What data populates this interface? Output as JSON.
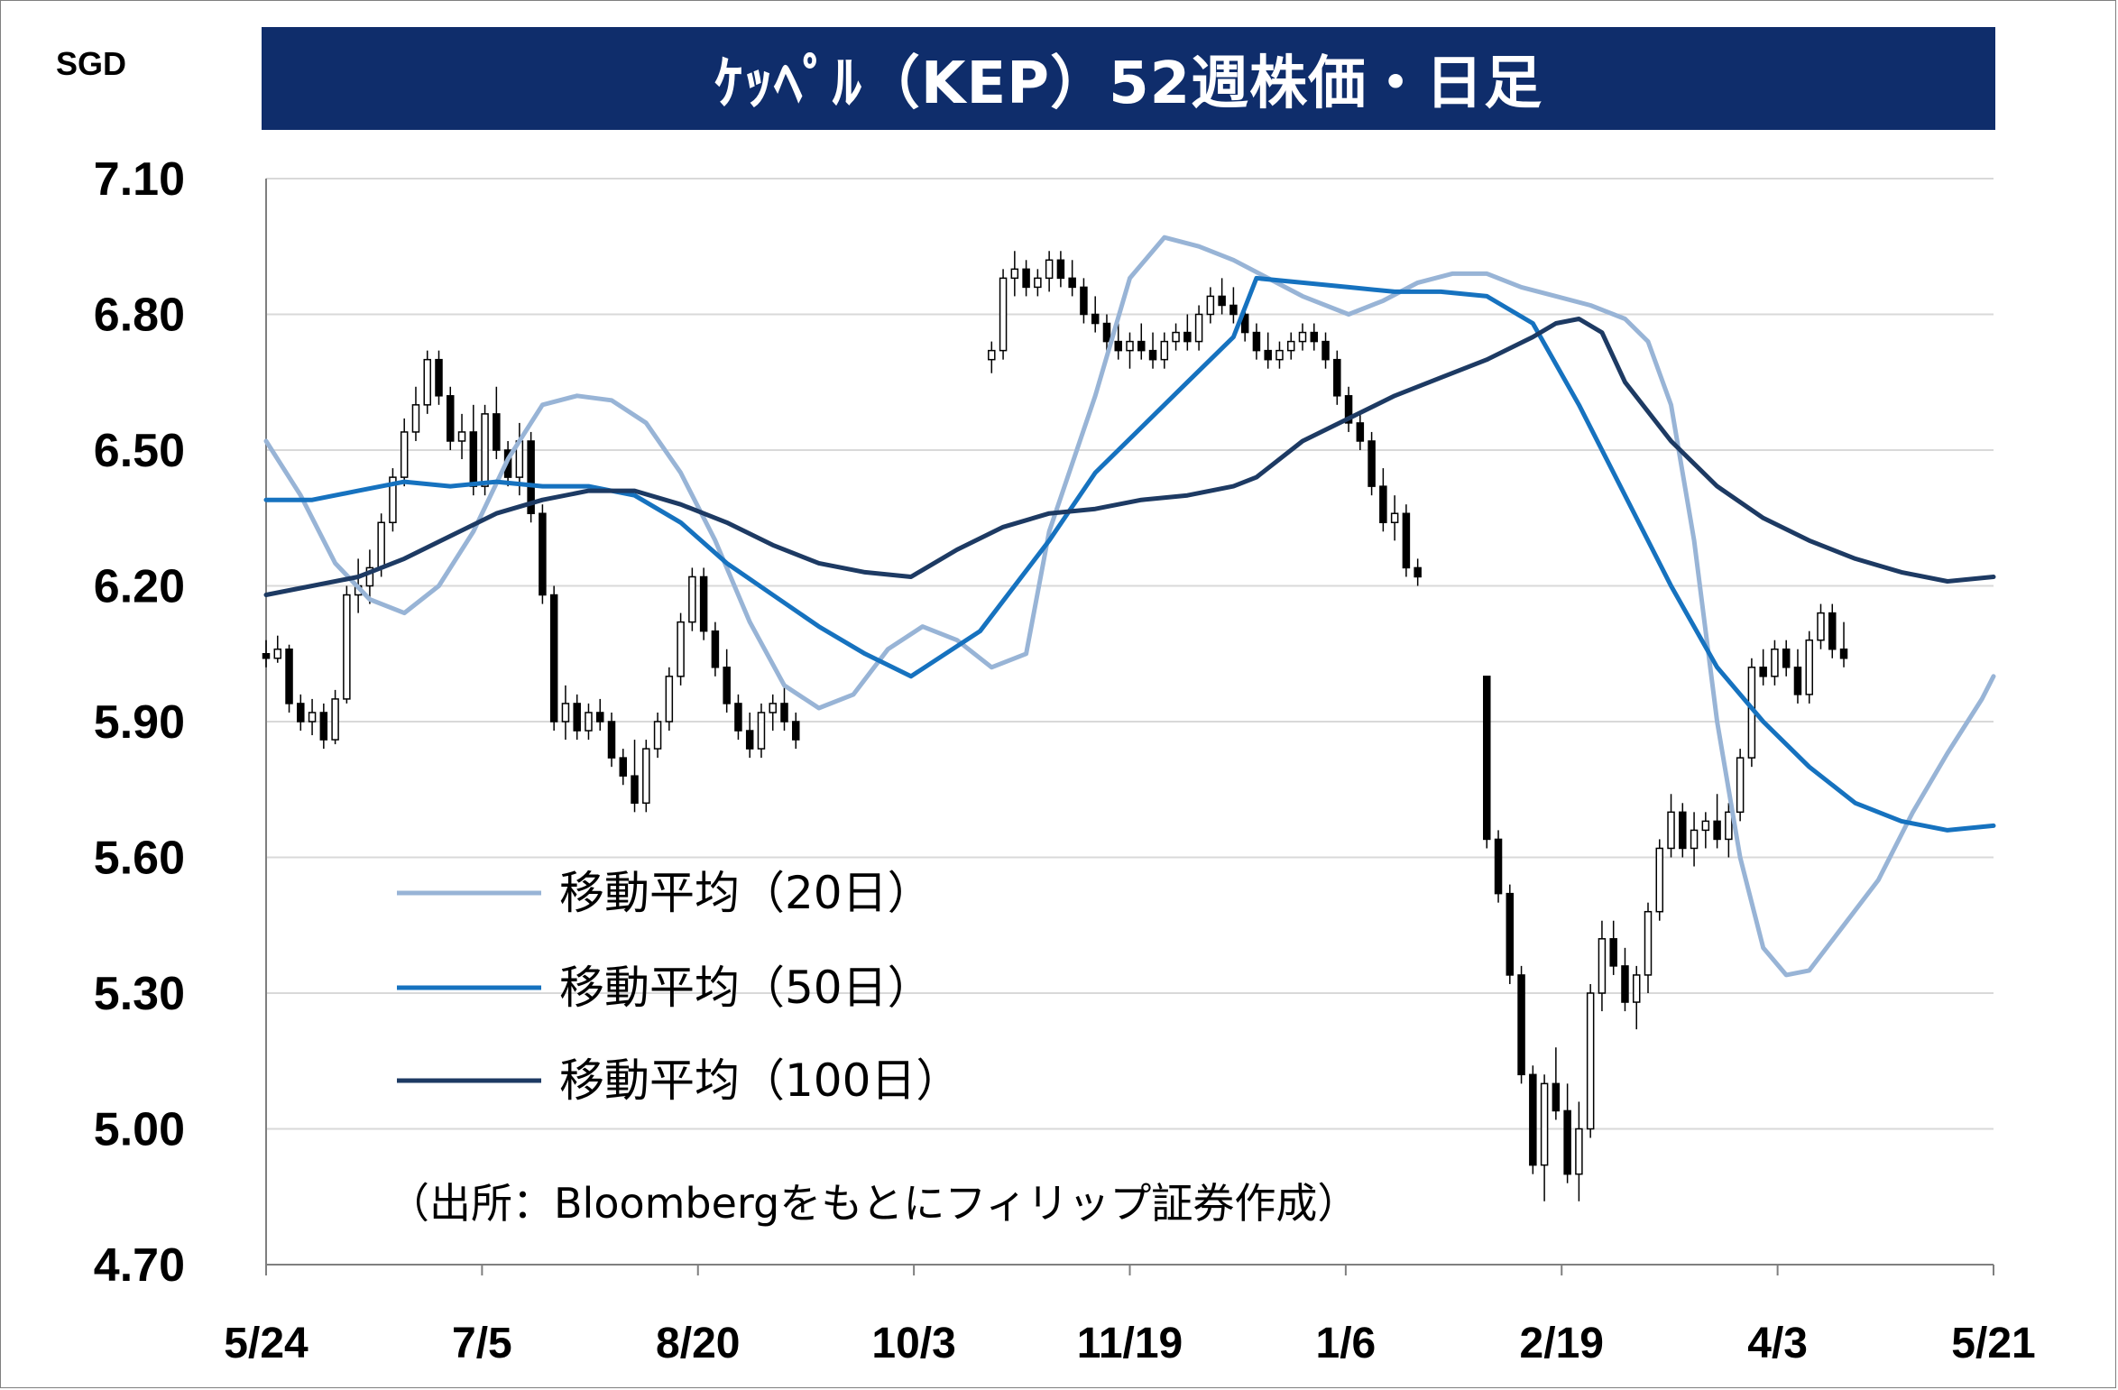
{
  "title": "ｹｯﾍﾟﾙ（KEP）52週株価・日足",
  "unit": "SGD",
  "source": "（出所：Bloombergをもとにフィリップ証券作成）",
  "colors": {
    "title_bg": "#0f2d6b",
    "ma20": "#98b4d6",
    "ma50": "#1672bf",
    "ma100": "#1d3a63",
    "candle_down": "#000000",
    "candle_up": "#ffffff",
    "grid": "#d9d9d9"
  },
  "chart_data": {
    "type": "candlestick",
    "ylim": [
      4.7,
      7.1
    ],
    "yticks": [
      "7.10",
      "6.80",
      "6.50",
      "6.20",
      "5.90",
      "5.60",
      "5.30",
      "5.00",
      "4.70"
    ],
    "xticks": [
      "5/24",
      "7/5",
      "8/20",
      "10/3",
      "11/19",
      "1/6",
      "2/19",
      "4/3",
      "5/21"
    ],
    "grid": "horizontal",
    "legend_position": "lower-left",
    "series": [
      {
        "name": "移動平均（20日）",
        "color": "#98b4d6",
        "points": [
          [
            0,
            6.52
          ],
          [
            3,
            6.4
          ],
          [
            6,
            6.25
          ],
          [
            9,
            6.17
          ],
          [
            12,
            6.14
          ],
          [
            15,
            6.2
          ],
          [
            18,
            6.32
          ],
          [
            21,
            6.48
          ],
          [
            24,
            6.6
          ],
          [
            27,
            6.62
          ],
          [
            30,
            6.61
          ],
          [
            33,
            6.56
          ],
          [
            36,
            6.45
          ],
          [
            39,
            6.3
          ],
          [
            42,
            6.12
          ],
          [
            45,
            5.98
          ],
          [
            48,
            5.93
          ],
          [
            51,
            5.96
          ],
          [
            54,
            6.06
          ],
          [
            57,
            6.11
          ],
          [
            60,
            6.08
          ],
          [
            63,
            6.02
          ],
          [
            66,
            6.05
          ],
          [
            68,
            6.32
          ],
          [
            72,
            6.62
          ],
          [
            75,
            6.88
          ],
          [
            78,
            6.97
          ],
          [
            81,
            6.95
          ],
          [
            84,
            6.92
          ],
          [
            87,
            6.88
          ],
          [
            90,
            6.84
          ],
          [
            94,
            6.8
          ],
          [
            97,
            6.83
          ],
          [
            100,
            6.87
          ],
          [
            103,
            6.89
          ],
          [
            106,
            6.89
          ],
          [
            109,
            6.86
          ],
          [
            112,
            6.84
          ],
          [
            115,
            6.82
          ],
          [
            118,
            6.79
          ],
          [
            120,
            6.74
          ],
          [
            122,
            6.6
          ],
          [
            124,
            6.3
          ],
          [
            126,
            5.9
          ],
          [
            128,
            5.6
          ],
          [
            130,
            5.4
          ],
          [
            132,
            5.34
          ],
          [
            134,
            5.35
          ],
          [
            137,
            5.45
          ],
          [
            140,
            5.55
          ],
          [
            143,
            5.7
          ],
          [
            146,
            5.83
          ],
          [
            149,
            5.95
          ],
          [
            150,
            6.0
          ]
        ]
      },
      {
        "name": "移動平均（50日）",
        "color": "#1672bf",
        "points": [
          [
            0,
            6.39
          ],
          [
            4,
            6.39
          ],
          [
            8,
            6.41
          ],
          [
            12,
            6.43
          ],
          [
            16,
            6.42
          ],
          [
            20,
            6.43
          ],
          [
            24,
            6.42
          ],
          [
            28,
            6.42
          ],
          [
            32,
            6.4
          ],
          [
            36,
            6.34
          ],
          [
            40,
            6.25
          ],
          [
            44,
            6.18
          ],
          [
            48,
            6.11
          ],
          [
            52,
            6.05
          ],
          [
            56,
            6.0
          ],
          [
            62,
            6.1
          ],
          [
            68,
            6.3
          ],
          [
            72,
            6.45
          ],
          [
            76,
            6.55
          ],
          [
            80,
            6.65
          ],
          [
            84,
            6.75
          ],
          [
            86,
            6.88
          ],
          [
            90,
            6.87
          ],
          [
            94,
            6.86
          ],
          [
            98,
            6.85
          ],
          [
            102,
            6.85
          ],
          [
            106,
            6.84
          ],
          [
            110,
            6.78
          ],
          [
            114,
            6.6
          ],
          [
            118,
            6.4
          ],
          [
            122,
            6.2
          ],
          [
            126,
            6.02
          ],
          [
            130,
            5.9
          ],
          [
            134,
            5.8
          ],
          [
            138,
            5.72
          ],
          [
            142,
            5.68
          ],
          [
            146,
            5.66
          ],
          [
            150,
            5.67
          ]
        ]
      },
      {
        "name": "移動平均（100日）",
        "color": "#1d3a63",
        "points": [
          [
            0,
            6.18
          ],
          [
            4,
            6.2
          ],
          [
            8,
            6.22
          ],
          [
            12,
            6.26
          ],
          [
            16,
            6.31
          ],
          [
            20,
            6.36
          ],
          [
            24,
            6.39
          ],
          [
            28,
            6.41
          ],
          [
            32,
            6.41
          ],
          [
            36,
            6.38
          ],
          [
            40,
            6.34
          ],
          [
            44,
            6.29
          ],
          [
            48,
            6.25
          ],
          [
            52,
            6.23
          ],
          [
            56,
            6.22
          ],
          [
            60,
            6.28
          ],
          [
            64,
            6.33
          ],
          [
            68,
            6.36
          ],
          [
            72,
            6.37
          ],
          [
            76,
            6.39
          ],
          [
            80,
            6.4
          ],
          [
            84,
            6.42
          ],
          [
            86,
            6.44
          ],
          [
            90,
            6.52
          ],
          [
            94,
            6.57
          ],
          [
            98,
            6.62
          ],
          [
            102,
            6.66
          ],
          [
            106,
            6.7
          ],
          [
            110,
            6.75
          ],
          [
            112,
            6.78
          ],
          [
            114,
            6.79
          ],
          [
            116,
            6.76
          ],
          [
            118,
            6.65
          ],
          [
            122,
            6.52
          ],
          [
            126,
            6.42
          ],
          [
            130,
            6.35
          ],
          [
            134,
            6.3
          ],
          [
            138,
            6.26
          ],
          [
            142,
            6.23
          ],
          [
            146,
            6.21
          ],
          [
            150,
            6.22
          ]
        ]
      }
    ],
    "candles": [
      [
        0,
        6.05,
        6.08,
        6.02,
        6.04
      ],
      [
        1,
        6.04,
        6.09,
        6.03,
        6.06
      ],
      [
        2,
        6.06,
        6.07,
        5.92,
        5.94
      ],
      [
        3,
        5.94,
        5.96,
        5.88,
        5.9
      ],
      [
        4,
        5.9,
        5.95,
        5.87,
        5.92
      ],
      [
        5,
        5.92,
        5.94,
        5.84,
        5.86
      ],
      [
        6,
        5.86,
        5.97,
        5.85,
        5.95
      ],
      [
        7,
        5.95,
        6.2,
        5.94,
        6.18
      ],
      [
        8,
        6.18,
        6.26,
        6.14,
        6.2
      ],
      [
        9,
        6.2,
        6.28,
        6.16,
        6.24
      ],
      [
        10,
        6.24,
        6.36,
        6.22,
        6.34
      ],
      [
        11,
        6.34,
        6.46,
        6.32,
        6.44
      ],
      [
        12,
        6.44,
        6.57,
        6.42,
        6.54
      ],
      [
        13,
        6.54,
        6.64,
        6.52,
        6.6
      ],
      [
        14,
        6.6,
        6.72,
        6.58,
        6.7
      ],
      [
        15,
        6.7,
        6.72,
        6.6,
        6.62
      ],
      [
        16,
        6.62,
        6.64,
        6.5,
        6.52
      ],
      [
        17,
        6.52,
        6.58,
        6.48,
        6.54
      ],
      [
        18,
        6.54,
        6.6,
        6.4,
        6.42
      ],
      [
        19,
        6.42,
        6.6,
        6.4,
        6.58
      ],
      [
        20,
        6.58,
        6.64,
        6.48,
        6.5
      ],
      [
        21,
        6.5,
        6.52,
        6.42,
        6.44
      ],
      [
        22,
        6.44,
        6.56,
        6.4,
        6.52
      ],
      [
        23,
        6.52,
        6.54,
        6.34,
        6.36
      ],
      [
        24,
        6.36,
        6.38,
        6.16,
        6.18
      ],
      [
        25,
        6.18,
        6.2,
        5.88,
        5.9
      ],
      [
        26,
        5.9,
        5.98,
        5.86,
        5.94
      ],
      [
        27,
        5.94,
        5.96,
        5.86,
        5.88
      ],
      [
        28,
        5.88,
        5.94,
        5.86,
        5.92
      ],
      [
        29,
        5.92,
        5.95,
        5.88,
        5.9
      ],
      [
        30,
        5.9,
        5.92,
        5.8,
        5.82
      ],
      [
        31,
        5.82,
        5.84,
        5.76,
        5.78
      ],
      [
        32,
        5.78,
        5.86,
        5.7,
        5.72
      ],
      [
        33,
        5.72,
        5.86,
        5.7,
        5.84
      ],
      [
        34,
        5.84,
        5.92,
        5.82,
        5.9
      ],
      [
        35,
        5.9,
        6.02,
        5.88,
        6.0
      ],
      [
        36,
        6.0,
        6.14,
        5.98,
        6.12
      ],
      [
        37,
        6.12,
        6.24,
        6.1,
        6.22
      ],
      [
        38,
        6.22,
        6.24,
        6.08,
        6.1
      ],
      [
        39,
        6.1,
        6.12,
        6.0,
        6.02
      ],
      [
        40,
        6.02,
        6.06,
        5.92,
        5.94
      ],
      [
        41,
        5.94,
        5.96,
        5.86,
        5.88
      ],
      [
        42,
        5.88,
        5.92,
        5.82,
        5.84
      ],
      [
        43,
        5.84,
        5.94,
        5.82,
        5.92
      ],
      [
        44,
        5.92,
        5.96,
        5.88,
        5.94
      ],
      [
        45,
        5.94,
        5.98,
        5.88,
        5.9
      ],
      [
        46,
        5.9,
        5.92,
        5.84,
        5.86
      ],
      [
        63,
        6.7,
        6.74,
        6.67,
        6.72
      ],
      [
        64,
        6.72,
        6.9,
        6.7,
        6.88
      ],
      [
        65,
        6.88,
        6.94,
        6.84,
        6.9
      ],
      [
        66,
        6.9,
        6.92,
        6.84,
        6.86
      ],
      [
        67,
        6.86,
        6.9,
        6.84,
        6.88
      ],
      [
        68,
        6.88,
        6.94,
        6.85,
        6.92
      ],
      [
        69,
        6.92,
        6.94,
        6.86,
        6.88
      ],
      [
        70,
        6.88,
        6.92,
        6.84,
        6.86
      ],
      [
        71,
        6.86,
        6.88,
        6.78,
        6.8
      ],
      [
        72,
        6.8,
        6.84,
        6.76,
        6.78
      ],
      [
        73,
        6.78,
        6.8,
        6.72,
        6.74
      ],
      [
        74,
        6.74,
        6.78,
        6.7,
        6.72
      ],
      [
        75,
        6.72,
        6.76,
        6.68,
        6.74
      ],
      [
        76,
        6.74,
        6.78,
        6.7,
        6.72
      ],
      [
        77,
        6.72,
        6.76,
        6.68,
        6.7
      ],
      [
        78,
        6.7,
        6.76,
        6.68,
        6.74
      ],
      [
        79,
        6.74,
        6.78,
        6.72,
        6.76
      ],
      [
        80,
        6.76,
        6.8,
        6.72,
        6.74
      ],
      [
        81,
        6.74,
        6.82,
        6.72,
        6.8
      ],
      [
        82,
        6.8,
        6.86,
        6.78,
        6.84
      ],
      [
        83,
        6.84,
        6.88,
        6.8,
        6.82
      ],
      [
        84,
        6.82,
        6.86,
        6.78,
        6.8
      ],
      [
        85,
        6.8,
        6.82,
        6.74,
        6.76
      ],
      [
        86,
        6.76,
        6.78,
        6.7,
        6.72
      ],
      [
        87,
        6.72,
        6.76,
        6.68,
        6.7
      ],
      [
        88,
        6.7,
        6.74,
        6.68,
        6.72
      ],
      [
        89,
        6.72,
        6.76,
        6.7,
        6.74
      ],
      [
        90,
        6.74,
        6.78,
        6.72,
        6.76
      ],
      [
        91,
        6.76,
        6.78,
        6.72,
        6.74
      ],
      [
        92,
        6.74,
        6.76,
        6.68,
        6.7
      ],
      [
        93,
        6.7,
        6.72,
        6.6,
        6.62
      ],
      [
        94,
        6.62,
        6.64,
        6.54,
        6.56
      ],
      [
        95,
        6.56,
        6.58,
        6.5,
        6.52
      ],
      [
        96,
        6.52,
        6.54,
        6.4,
        6.42
      ],
      [
        97,
        6.42,
        6.46,
        6.32,
        6.34
      ],
      [
        98,
        6.34,
        6.4,
        6.3,
        6.36
      ],
      [
        99,
        6.36,
        6.38,
        6.22,
        6.24
      ],
      [
        100,
        6.24,
        6.26,
        6.2,
        6.22
      ],
      [
        106,
        6.0,
        6.0,
        5.62,
        5.64
      ],
      [
        107,
        5.64,
        5.66,
        5.5,
        5.52
      ],
      [
        108,
        5.52,
        5.54,
        5.32,
        5.34
      ],
      [
        109,
        5.34,
        5.36,
        5.1,
        5.12
      ],
      [
        110,
        5.12,
        5.14,
        4.9,
        4.92
      ],
      [
        111,
        4.92,
        5.12,
        4.84,
        5.1
      ],
      [
        112,
        5.1,
        5.18,
        5.02,
        5.04
      ],
      [
        113,
        5.04,
        5.1,
        4.88,
        4.9
      ],
      [
        114,
        4.9,
        5.06,
        4.84,
        5.0
      ],
      [
        115,
        5.0,
        5.32,
        4.98,
        5.3
      ],
      [
        116,
        5.3,
        5.46,
        5.26,
        5.42
      ],
      [
        117,
        5.42,
        5.46,
        5.34,
        5.36
      ],
      [
        118,
        5.36,
        5.4,
        5.26,
        5.28
      ],
      [
        119,
        5.28,
        5.36,
        5.22,
        5.34
      ],
      [
        120,
        5.34,
        5.5,
        5.3,
        5.48
      ],
      [
        121,
        5.48,
        5.64,
        5.46,
        5.62
      ],
      [
        122,
        5.62,
        5.74,
        5.6,
        5.7
      ],
      [
        123,
        5.7,
        5.72,
        5.6,
        5.62
      ],
      [
        124,
        5.62,
        5.7,
        5.58,
        5.66
      ],
      [
        125,
        5.66,
        5.7,
        5.62,
        5.68
      ],
      [
        126,
        5.68,
        5.74,
        5.62,
        5.64
      ],
      [
        127,
        5.64,
        5.72,
        5.6,
        5.7
      ],
      [
        128,
        5.7,
        5.84,
        5.68,
        5.82
      ],
      [
        129,
        5.82,
        6.04,
        5.8,
        6.02
      ],
      [
        130,
        6.02,
        6.06,
        5.98,
        6.0
      ],
      [
        131,
        6.0,
        6.08,
        5.98,
        6.06
      ],
      [
        132,
        6.06,
        6.08,
        6.0,
        6.02
      ],
      [
        133,
        6.02,
        6.06,
        5.94,
        5.96
      ],
      [
        134,
        5.96,
        6.1,
        5.94,
        6.08
      ],
      [
        135,
        6.08,
        6.16,
        6.06,
        6.14
      ],
      [
        136,
        6.14,
        6.16,
        6.04,
        6.06
      ],
      [
        137,
        6.06,
        6.12,
        6.02,
        6.04
      ]
    ]
  },
  "legend": [
    {
      "label": "移動平均（20日）",
      "color": "#98b4d6"
    },
    {
      "label": "移動平均（50日）",
      "color": "#1672bf"
    },
    {
      "label": "移動平均（100日）",
      "color": "#1d3a63"
    }
  ]
}
